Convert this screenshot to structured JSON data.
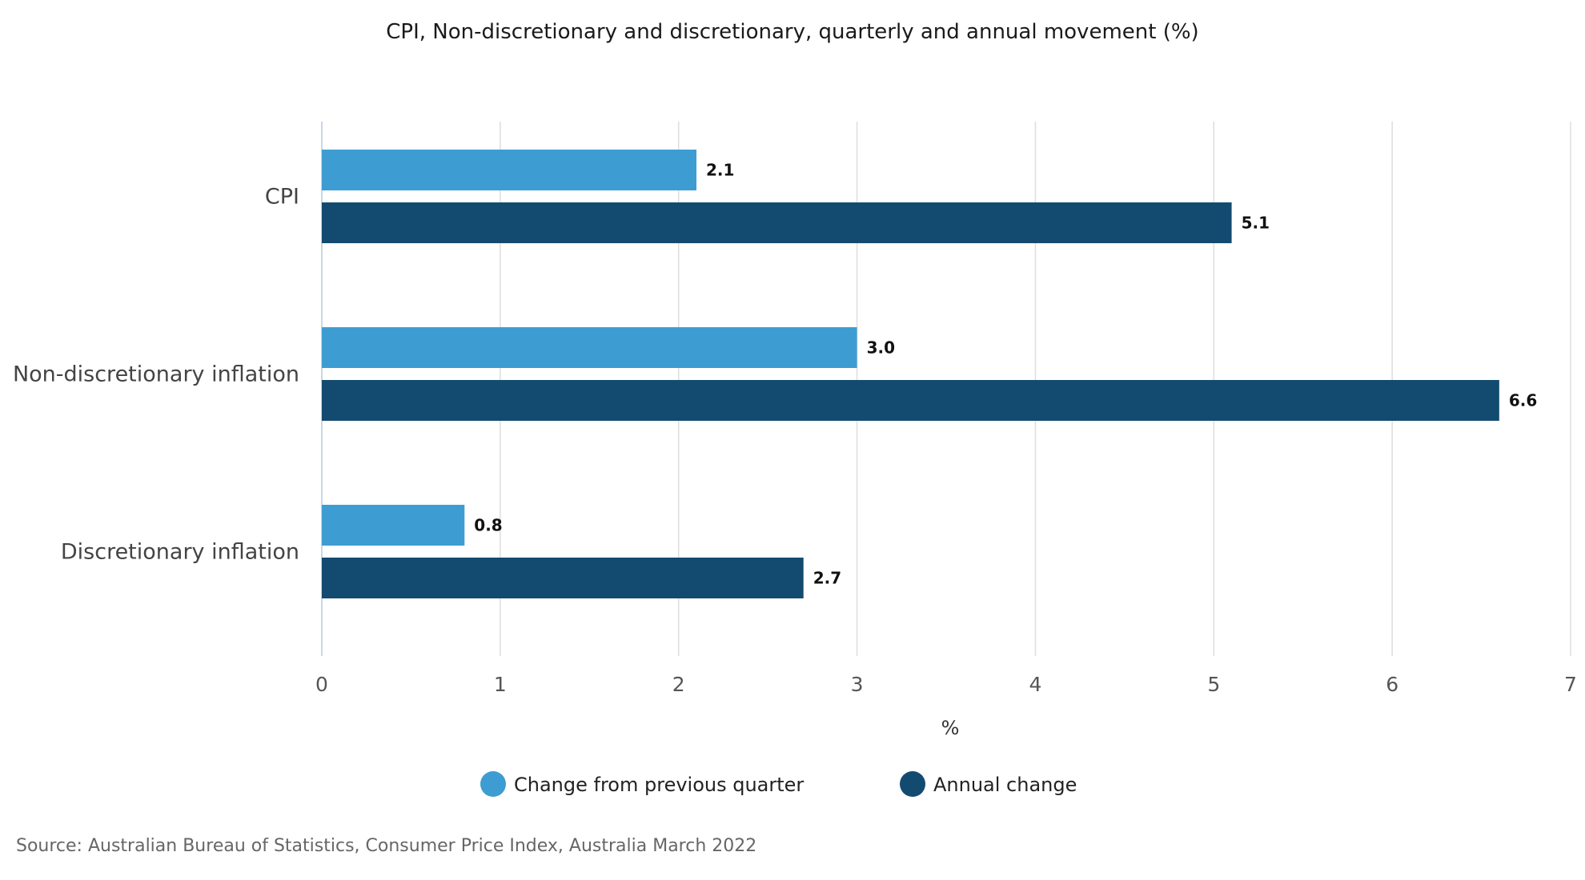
{
  "chart_data": {
    "type": "bar",
    "orientation": "horizontal",
    "title": "CPI, Non-discretionary and discretionary, quarterly and annual movement (%)",
    "categories": [
      "CPI",
      "Non-discretionary inflation",
      "Discretionary inflation"
    ],
    "series": [
      {
        "name": "Change from previous quarter",
        "color": "#3d9dd3",
        "values": [
          2.1,
          3.0,
          0.8
        ]
      },
      {
        "name": "Annual change",
        "color": "#134b70",
        "values": [
          5.1,
          6.6,
          2.7
        ]
      }
    ],
    "data_labels": [
      [
        "2.1",
        "5.1"
      ],
      [
        "3.0",
        "6.6"
      ],
      [
        "0.8",
        "2.7"
      ]
    ],
    "xlabel": "%",
    "xlim": [
      0,
      7
    ],
    "xticks": [
      0,
      1,
      2,
      3,
      4,
      5,
      6,
      7
    ],
    "grid": true,
    "legend_position": "bottom-center",
    "source": "Source: Australian Bureau of Statistics, Consumer Price Index, Australia March 2022"
  }
}
